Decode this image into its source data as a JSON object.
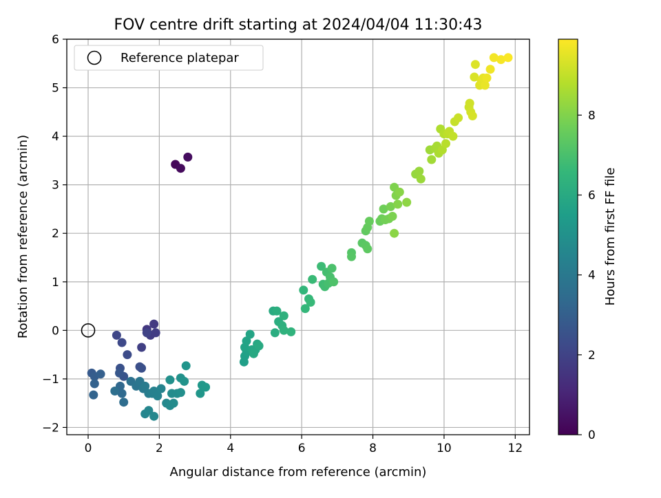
{
  "chart_data": {
    "type": "scatter",
    "title": "FOV centre drift starting at 2024/04/04 11:30:43",
    "xlabel": "Angular distance from reference (arcmin)",
    "ylabel": "Rotation from reference (arcmin)",
    "xlim": [
      -0.6,
      12.4
    ],
    "ylim": [
      -2.15,
      6.0
    ],
    "xticks": [
      "0",
      "2",
      "4",
      "6",
      "8",
      "10",
      "12"
    ],
    "yticks": [
      "−2",
      "−1",
      "0",
      "1",
      "2",
      "3",
      "4",
      "5",
      "6"
    ],
    "grid": true,
    "legend": {
      "placement": "top-left",
      "entries": [
        "Reference platepar"
      ]
    },
    "reference": {
      "x": 0,
      "y": 0
    },
    "colorbar": {
      "label": "Hours from first FF file",
      "range": [
        0,
        9.9
      ],
      "ticks": [
        "0",
        "2",
        "4",
        "6",
        "8"
      ],
      "colormap": [
        "#440154",
        "#482878",
        "#3e4989",
        "#31688e",
        "#26828e",
        "#1f9e89",
        "#35b779",
        "#6ece58",
        "#b5de2b",
        "#fde725"
      ]
    },
    "series": [
      {
        "points": [
          [
            2.45,
            3.42,
            0.15
          ],
          [
            2.6,
            3.34,
            0.25
          ],
          [
            2.8,
            3.57,
            0.35
          ],
          [
            1.65,
            0.02,
            1.6
          ],
          [
            1.85,
            0.13,
            1.7
          ],
          [
            1.75,
            -0.1,
            1.75
          ],
          [
            1.9,
            -0.05,
            1.8
          ],
          [
            1.5,
            -0.35,
            1.9
          ],
          [
            1.65,
            -0.05,
            2.0
          ],
          [
            0.8,
            -0.1,
            2.1
          ],
          [
            0.95,
            -0.25,
            2.2
          ],
          [
            1.1,
            -0.5,
            2.3
          ],
          [
            1.45,
            -0.75,
            2.4
          ],
          [
            1.5,
            -0.78,
            2.45
          ],
          [
            0.9,
            -0.78,
            2.5
          ],
          [
            1.0,
            -0.95,
            2.6
          ],
          [
            0.88,
            -0.88,
            2.7
          ],
          [
            0.1,
            -0.88,
            2.8
          ],
          [
            0.18,
            -0.95,
            2.9
          ],
          [
            0.35,
            -0.9,
            3.0
          ],
          [
            0.18,
            -1.1,
            3.1
          ],
          [
            0.15,
            -1.33,
            3.15
          ],
          [
            0.9,
            -1.15,
            3.3
          ],
          [
            0.95,
            -1.3,
            3.4
          ],
          [
            1.0,
            -1.48,
            3.5
          ],
          [
            0.75,
            -1.25,
            3.6
          ],
          [
            1.2,
            -1.05,
            3.7
          ],
          [
            1.35,
            -1.15,
            3.8
          ],
          [
            1.45,
            -1.05,
            3.9
          ],
          [
            1.55,
            -1.2,
            4.0
          ],
          [
            1.6,
            -1.15,
            4.1
          ],
          [
            1.7,
            -1.3,
            4.2
          ],
          [
            1.8,
            -1.3,
            4.3
          ],
          [
            1.85,
            -1.25,
            4.35
          ],
          [
            1.95,
            -1.35,
            4.4
          ],
          [
            2.05,
            -1.2,
            4.45
          ],
          [
            1.6,
            -1.72,
            4.5
          ],
          [
            1.7,
            -1.65,
            4.55
          ],
          [
            1.85,
            -1.77,
            4.6
          ],
          [
            2.2,
            -1.5,
            4.65
          ],
          [
            2.3,
            -1.55,
            4.7
          ],
          [
            2.4,
            -1.5,
            4.75
          ],
          [
            2.35,
            -1.3,
            4.8
          ],
          [
            2.5,
            -1.3,
            4.85
          ],
          [
            2.6,
            -1.28,
            4.9
          ],
          [
            2.3,
            -1.02,
            4.95
          ],
          [
            2.6,
            -0.98,
            5.0
          ],
          [
            2.7,
            -1.05,
            5.05
          ],
          [
            2.75,
            -0.73,
            5.15
          ],
          [
            3.15,
            -1.3,
            5.2
          ],
          [
            3.2,
            -1.13,
            5.25
          ],
          [
            3.3,
            -1.17,
            5.3
          ],
          [
            4.38,
            -0.65,
            5.55
          ],
          [
            4.4,
            -0.53,
            5.6
          ],
          [
            4.45,
            -0.45,
            5.65
          ],
          [
            4.4,
            -0.35,
            5.7
          ],
          [
            4.45,
            -0.22,
            5.72
          ],
          [
            4.55,
            -0.08,
            5.75
          ],
          [
            4.6,
            -0.4,
            5.8
          ],
          [
            4.7,
            -0.4,
            5.85
          ],
          [
            4.75,
            -0.28,
            5.9
          ],
          [
            4.65,
            -0.48,
            5.95
          ],
          [
            4.8,
            -0.32,
            6.0
          ],
          [
            5.2,
            0.4,
            6.05
          ],
          [
            5.25,
            -0.05,
            6.1
          ],
          [
            5.35,
            0.18,
            6.15
          ],
          [
            5.3,
            0.4,
            6.2
          ],
          [
            5.45,
            0.1,
            6.25
          ],
          [
            5.5,
            0.3,
            6.3
          ],
          [
            5.5,
            0.0,
            6.35
          ],
          [
            5.7,
            -0.03,
            6.4
          ],
          [
            6.05,
            0.83,
            6.5
          ],
          [
            6.1,
            0.45,
            6.55
          ],
          [
            6.2,
            0.65,
            6.6
          ],
          [
            6.25,
            0.58,
            6.65
          ],
          [
            6.3,
            1.05,
            6.7
          ],
          [
            6.55,
            1.32,
            6.75
          ],
          [
            6.6,
            0.95,
            6.8
          ],
          [
            6.65,
            0.9,
            6.85
          ],
          [
            6.7,
            1.2,
            6.9
          ],
          [
            6.75,
            0.97,
            6.95
          ],
          [
            6.8,
            1.1,
            7.0
          ],
          [
            6.85,
            1.28,
            7.05
          ],
          [
            6.9,
            1.0,
            7.1
          ],
          [
            7.4,
            1.6,
            7.2
          ],
          [
            7.4,
            1.52,
            7.25
          ],
          [
            7.7,
            1.8,
            7.3
          ],
          [
            7.8,
            1.75,
            7.35
          ],
          [
            7.85,
            1.68,
            7.4
          ],
          [
            7.8,
            2.05,
            7.45
          ],
          [
            7.85,
            2.12,
            7.5
          ],
          [
            7.9,
            2.25,
            7.55
          ],
          [
            8.2,
            2.25,
            7.6
          ],
          [
            8.25,
            2.3,
            7.65
          ],
          [
            8.3,
            2.5,
            7.7
          ],
          [
            8.35,
            2.28,
            7.75
          ],
          [
            8.45,
            2.3,
            7.8
          ],
          [
            8.5,
            2.55,
            7.85
          ],
          [
            8.55,
            2.35,
            7.9
          ],
          [
            8.6,
            2.95,
            7.95
          ],
          [
            8.65,
            2.78,
            8.0
          ],
          [
            8.7,
            2.6,
            8.05
          ],
          [
            8.75,
            2.85,
            8.1
          ],
          [
            8.6,
            2.0,
            8.15
          ],
          [
            8.95,
            2.64,
            8.2
          ],
          [
            9.2,
            3.22,
            8.3
          ],
          [
            9.3,
            3.28,
            8.35
          ],
          [
            9.35,
            3.12,
            8.4
          ],
          [
            9.6,
            3.72,
            8.45
          ],
          [
            9.65,
            3.52,
            8.5
          ],
          [
            9.75,
            3.75,
            8.55
          ],
          [
            9.8,
            3.8,
            8.6
          ],
          [
            9.85,
            3.65,
            8.65
          ],
          [
            9.9,
            4.15,
            8.7
          ],
          [
            9.95,
            3.72,
            8.75
          ],
          [
            10.0,
            4.05,
            8.8
          ],
          [
            10.05,
            3.85,
            8.85
          ],
          [
            10.1,
            4.05,
            8.9
          ],
          [
            10.15,
            4.1,
            8.95
          ],
          [
            10.25,
            4.0,
            9.0
          ],
          [
            10.3,
            4.3,
            9.05
          ],
          [
            10.4,
            4.38,
            9.1
          ],
          [
            10.7,
            4.6,
            9.15
          ],
          [
            10.72,
            4.68,
            9.2
          ],
          [
            10.75,
            4.5,
            9.25
          ],
          [
            10.8,
            4.42,
            9.3
          ],
          [
            10.85,
            5.22,
            9.35
          ],
          [
            10.88,
            5.48,
            9.4
          ],
          [
            11.0,
            5.05,
            9.45
          ],
          [
            11.05,
            5.15,
            9.5
          ],
          [
            11.1,
            5.2,
            9.55
          ],
          [
            11.15,
            5.05,
            9.6
          ],
          [
            11.2,
            5.2,
            9.65
          ],
          [
            11.3,
            5.38,
            9.7
          ],
          [
            11.4,
            5.62,
            9.75
          ],
          [
            11.6,
            5.58,
            9.8
          ],
          [
            11.8,
            5.62,
            9.85
          ]
        ]
      }
    ]
  }
}
